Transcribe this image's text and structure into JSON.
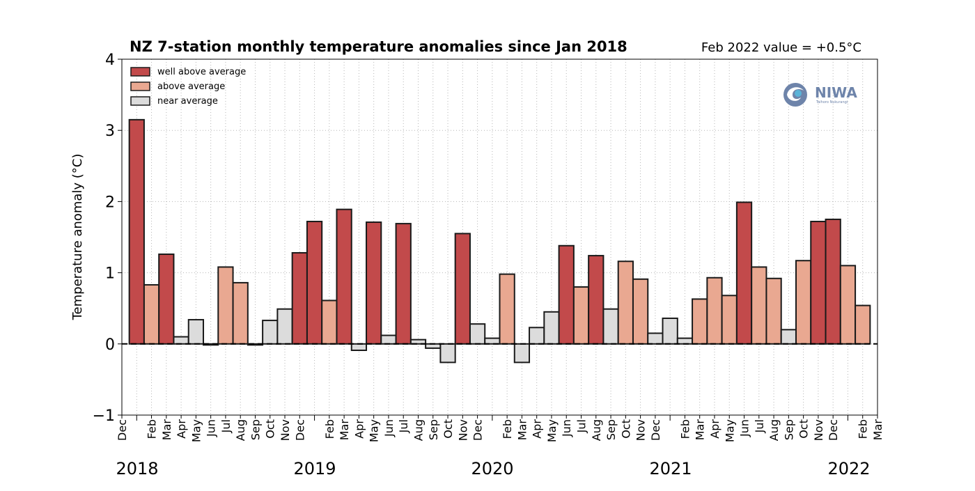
{
  "title": "NZ 7-station monthly temperature anomalies since Jan 2018",
  "subtitle": "Feb 2022 value = +0.5°C",
  "logo": {
    "text": "NIWA",
    "tagline": "Taihoro Nukurangi"
  },
  "colors": {
    "well": "#c24a4b",
    "above": "#e9a891",
    "near": "#dcdcdc",
    "edge": "#1a1a1a"
  },
  "chart_data": {
    "type": "bar",
    "title": "NZ 7-station monthly temperature anomalies since Jan 2018",
    "ylabel": "Temperature anomaly (°C)",
    "xlabel": "",
    "ylim": [
      -1,
      4
    ],
    "yticks": [
      "−1",
      "0",
      "1",
      "2",
      "3",
      "4"
    ],
    "grid": true,
    "legend_position": "top-left",
    "legend": [
      {
        "key": "well",
        "label": "well above average"
      },
      {
        "key": "above",
        "label": "above average"
      },
      {
        "key": "near",
        "label": "near average"
      }
    ],
    "x_tick_labels": [
      "Dec",
      "Feb",
      "Mar",
      "Apr",
      "May",
      "Jun",
      "Jul",
      "Aug",
      "Sep",
      "Oct",
      "Nov",
      "Dec",
      "Feb",
      "Mar",
      "Apr",
      "May",
      "Jun",
      "Jul",
      "Aug",
      "Sep",
      "Oct",
      "Nov",
      "Dec",
      "Feb",
      "Mar",
      "Apr",
      "May",
      "Jun",
      "Jul",
      "Aug",
      "Sep",
      "Oct",
      "Nov",
      "Dec",
      "Feb",
      "Mar",
      "Apr",
      "May",
      "Jun",
      "Jul",
      "Aug",
      "Sep",
      "Oct",
      "Nov",
      "Dec",
      "Feb",
      "Mar"
    ],
    "year_labels": [
      "2018",
      "2019",
      "2020",
      "2021",
      "2022"
    ],
    "months": [
      "Jan 2018",
      "Feb 2018",
      "Mar 2018",
      "Apr 2018",
      "May 2018",
      "Jun 2018",
      "Jul 2018",
      "Aug 2018",
      "Sep 2018",
      "Oct 2018",
      "Nov 2018",
      "Dec 2018",
      "Jan 2019",
      "Feb 2019",
      "Mar 2019",
      "Apr 2019",
      "May 2019",
      "Jun 2019",
      "Jul 2019",
      "Aug 2019",
      "Sep 2019",
      "Oct 2019",
      "Nov 2019",
      "Dec 2019",
      "Jan 2020",
      "Feb 2020",
      "Mar 2020",
      "Apr 2020",
      "May 2020",
      "Jun 2020",
      "Jul 2020",
      "Aug 2020",
      "Sep 2020",
      "Oct 2020",
      "Nov 2020",
      "Dec 2020",
      "Jan 2021",
      "Feb 2021",
      "Mar 2021",
      "Apr 2021",
      "May 2021",
      "Jun 2021",
      "Jul 2021",
      "Aug 2021",
      "Sep 2021",
      "Oct 2021",
      "Nov 2021",
      "Dec 2021",
      "Jan 2022",
      "Feb 2022"
    ],
    "values": [
      3.15,
      0.83,
      1.26,
      0.1,
      0.34,
      -0.01,
      1.08,
      0.86,
      -0.01,
      0.33,
      0.49,
      1.28,
      1.72,
      0.61,
      1.89,
      -0.09,
      1.71,
      0.12,
      1.69,
      0.06,
      -0.06,
      -0.26,
      1.55,
      0.28,
      0.08,
      0.98,
      -0.26,
      0.23,
      0.45,
      1.38,
      0.8,
      1.24,
      0.49,
      1.16,
      0.91,
      0.15,
      0.36,
      0.08,
      0.63,
      0.93,
      0.68,
      1.99,
      1.08,
      0.92,
      0.2,
      1.17,
      1.72,
      1.75,
      1.1,
      0.54
    ],
    "categories": [
      "well",
      "above",
      "well",
      "near",
      "near",
      "near",
      "above",
      "above",
      "near",
      "near",
      "near",
      "well",
      "well",
      "above",
      "well",
      "near",
      "well",
      "near",
      "well",
      "near",
      "near",
      "near",
      "well",
      "near",
      "near",
      "above",
      "near",
      "near",
      "near",
      "well",
      "above",
      "well",
      "near",
      "above",
      "above",
      "near",
      "near",
      "near",
      "above",
      "above",
      "above",
      "well",
      "above",
      "above",
      "near",
      "above",
      "well",
      "well",
      "above",
      "above"
    ]
  }
}
